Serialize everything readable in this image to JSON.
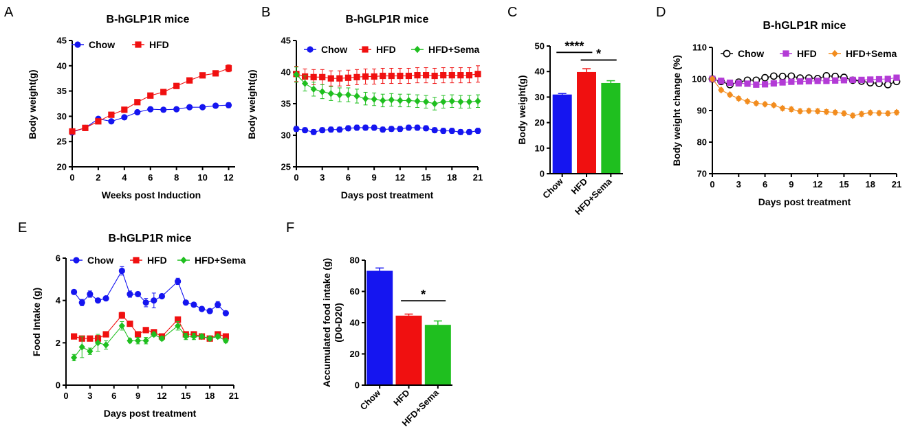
{
  "colors": {
    "chow": "#1515f0",
    "hfd": "#f01010",
    "hfd_sema": "#1fbf1f",
    "chow_open": "#000000",
    "hfd_purple": "#b33bd6",
    "hfd_sema_orange": "#f28c1e"
  },
  "chart_data": [
    {
      "id": "A",
      "type": "line",
      "panel_label": "A",
      "title": "B-hGLP1R mice",
      "xlabel": "Weeks post Induction",
      "ylabel": "Body weight(g)",
      "xlim": [
        0,
        12.5
      ],
      "ylim": [
        20,
        45
      ],
      "xticks": [
        0,
        2,
        4,
        6,
        8,
        10,
        12
      ],
      "yticks": [
        20,
        25,
        30,
        35,
        40,
        45
      ],
      "legend": "top-left",
      "series": [
        {
          "name": "Chow",
          "marker": "circle",
          "color": "#1515f0",
          "x": [
            0,
            1,
            2,
            3,
            4,
            5,
            6,
            7,
            8,
            9,
            10,
            11,
            12
          ],
          "y": [
            26.9,
            27.7,
            29.5,
            29.0,
            29.8,
            30.8,
            31.4,
            31.3,
            31.4,
            31.8,
            31.8,
            32.1,
            32.2
          ],
          "err": [
            0.6,
            0.4,
            0.4,
            0.3,
            0.4,
            0.3,
            0.4,
            0.3,
            0.3,
            0.3,
            0.3,
            0.3,
            0.5
          ]
        },
        {
          "name": "HFD",
          "marker": "square",
          "color": "#f01010",
          "x": [
            0,
            1,
            2,
            3,
            4,
            5,
            6,
            7,
            8,
            9,
            10,
            11,
            12
          ],
          "y": [
            27.0,
            27.7,
            29.0,
            30.3,
            31.3,
            32.8,
            34.1,
            34.8,
            36.0,
            37.1,
            38.1,
            38.5,
            39.5
          ],
          "err": [
            0.5,
            0.4,
            0.3,
            0.3,
            0.3,
            0.3,
            0.3,
            0.4,
            0.4,
            0.4,
            0.5,
            0.5,
            0.7
          ]
        }
      ]
    },
    {
      "id": "B",
      "type": "line",
      "panel_label": "B",
      "title": "B-hGLP1R mice",
      "xlabel": "Days post treatment",
      "ylabel": "Body weight(g)",
      "xlim": [
        0,
        21
      ],
      "ylim": [
        25,
        45
      ],
      "xticks": [
        0,
        3,
        6,
        9,
        12,
        15,
        18,
        21
      ],
      "yticks": [
        25,
        30,
        35,
        40,
        45
      ],
      "legend": "top",
      "series": [
        {
          "name": "Chow",
          "marker": "circle",
          "color": "#1515f0",
          "x": [
            0,
            1,
            2,
            3,
            4,
            5,
            6,
            7,
            8,
            9,
            10,
            11,
            12,
            13,
            14,
            15,
            16,
            17,
            18,
            19,
            20,
            21
          ],
          "y": [
            31.0,
            30.8,
            30.5,
            30.8,
            30.9,
            30.9,
            31.1,
            31.2,
            31.2,
            31.2,
            30.9,
            31.0,
            31.0,
            31.2,
            31.2,
            31.1,
            30.8,
            30.7,
            30.7,
            30.5,
            30.5,
            30.7
          ],
          "err": [
            0.4,
            0.4,
            0.4,
            0.4,
            0.4,
            0.4,
            0.4,
            0.4,
            0.4,
            0.4,
            0.4,
            0.4,
            0.4,
            0.4,
            0.4,
            0.4,
            0.4,
            0.4,
            0.4,
            0.4,
            0.4,
            0.4
          ]
        },
        {
          "name": "HFD",
          "marker": "square",
          "color": "#f01010",
          "x": [
            0,
            1,
            2,
            3,
            4,
            5,
            6,
            7,
            8,
            9,
            10,
            11,
            12,
            13,
            14,
            15,
            16,
            17,
            18,
            19,
            20,
            21
          ],
          "y": [
            39.7,
            39.3,
            39.2,
            39.2,
            39.0,
            39.0,
            39.1,
            39.2,
            39.3,
            39.3,
            39.4,
            39.4,
            39.4,
            39.4,
            39.5,
            39.5,
            39.4,
            39.5,
            39.5,
            39.5,
            39.5,
            39.7
          ],
          "err": [
            1.2,
            1.2,
            1.2,
            1.2,
            1.2,
            1.2,
            1.2,
            1.2,
            1.2,
            1.2,
            1.2,
            1.2,
            1.2,
            1.2,
            1.2,
            1.2,
            1.2,
            1.2,
            1.2,
            1.2,
            1.2,
            1.3
          ]
        },
        {
          "name": "HFD+Sema",
          "marker": "diamond",
          "color": "#1fbf1f",
          "x": [
            0,
            1,
            2,
            3,
            4,
            5,
            6,
            7,
            8,
            9,
            10,
            11,
            12,
            13,
            14,
            15,
            16,
            17,
            18,
            19,
            20,
            21
          ],
          "y": [
            39.6,
            38.2,
            37.3,
            36.9,
            36.6,
            36.4,
            36.4,
            36.2,
            35.8,
            35.7,
            35.5,
            35.6,
            35.5,
            35.5,
            35.4,
            35.3,
            35.0,
            35.3,
            35.4,
            35.3,
            35.3,
            35.4
          ],
          "err": [
            1.2,
            1.2,
            1.1,
            1.1,
            1.1,
            1.1,
            1.1,
            1.1,
            1.0,
            1.0,
            1.0,
            1.0,
            1.0,
            1.0,
            1.0,
            1.0,
            1.0,
            1.0,
            1.0,
            1.0,
            1.0,
            1.0
          ]
        }
      ]
    },
    {
      "id": "C",
      "type": "bar",
      "panel_label": "C",
      "ylabel": "Body weight(g)",
      "ylim": [
        0,
        50
      ],
      "yticks": [
        0,
        10,
        20,
        30,
        40,
        50
      ],
      "categories": [
        "Chow",
        "HFD",
        "HFD+Sema"
      ],
      "values": [
        31.0,
        39.8,
        35.5
      ],
      "err": [
        0.4,
        1.3,
        0.9
      ],
      "bar_colors": [
        "#1515f0",
        "#f01010",
        "#1fbf1f"
      ],
      "annotations": [
        {
          "text": "****",
          "from": 0,
          "to": 1,
          "y": 47.5
        },
        {
          "text": "*",
          "from": 1,
          "to": 2,
          "y": 44.5
        }
      ]
    },
    {
      "id": "D",
      "type": "line",
      "panel_label": "D",
      "title": "B-hGLP1R mice",
      "xlabel": "Days post treatment",
      "ylabel": "Body weight change (%)",
      "xlim": [
        0,
        21
      ],
      "ylim": [
        70,
        110
      ],
      "xticks": [
        0,
        3,
        6,
        9,
        12,
        15,
        18,
        21
      ],
      "yticks": [
        70,
        80,
        90,
        100,
        110
      ],
      "legend": "top",
      "series": [
        {
          "name": "Chow",
          "marker": "open-circle",
          "color": "#000000",
          "x": [
            0,
            1,
            2,
            3,
            4,
            5,
            6,
            7,
            8,
            9,
            10,
            11,
            12,
            13,
            14,
            15,
            16,
            17,
            18,
            19,
            20,
            21
          ],
          "y": [
            100.0,
            99.2,
            98.2,
            99.0,
            99.6,
            99.6,
            100.4,
            100.9,
            100.8,
            100.9,
            100.3,
            100.3,
            100.1,
            101.0,
            100.8,
            100.5,
            99.6,
            99.3,
            98.8,
            98.6,
            98.2,
            99.2
          ],
          "err": [
            0.5,
            0.5,
            0.5,
            0.5,
            0.5,
            0.5,
            0.5,
            0.5,
            0.5,
            0.5,
            0.5,
            0.5,
            0.5,
            0.5,
            0.5,
            0.5,
            0.5,
            0.5,
            0.5,
            0.5,
            0.5,
            0.5
          ]
        },
        {
          "name": "HFD",
          "marker": "square",
          "color": "#b33bd6",
          "x": [
            0,
            1,
            2,
            3,
            4,
            5,
            6,
            7,
            8,
            9,
            10,
            11,
            12,
            13,
            14,
            15,
            16,
            17,
            18,
            19,
            20,
            21
          ],
          "y": [
            100.0,
            99.4,
            98.8,
            98.6,
            98.5,
            98.2,
            98.3,
            98.6,
            98.9,
            99.1,
            99.2,
            99.3,
            99.4,
            99.4,
            99.5,
            99.6,
            99.7,
            99.7,
            99.8,
            99.9,
            100.0,
            100.4
          ],
          "err": [
            0.4,
            0.4,
            0.4,
            0.4,
            0.4,
            0.4,
            0.4,
            0.4,
            0.4,
            0.4,
            0.4,
            0.4,
            0.4,
            0.4,
            0.4,
            0.4,
            0.4,
            0.4,
            0.4,
            0.4,
            0.4,
            0.6
          ]
        },
        {
          "name": "HFD+Sema",
          "marker": "diamond",
          "color": "#f28c1e",
          "x": [
            0,
            1,
            2,
            3,
            4,
            5,
            6,
            7,
            8,
            9,
            10,
            11,
            12,
            13,
            14,
            15,
            16,
            17,
            18,
            19,
            20,
            21
          ],
          "y": [
            100.0,
            96.5,
            95.0,
            93.8,
            92.9,
            92.3,
            92.0,
            91.7,
            90.7,
            90.4,
            89.8,
            89.9,
            89.8,
            89.6,
            89.4,
            89.1,
            88.4,
            88.9,
            89.3,
            89.2,
            89.1,
            89.4
          ],
          "err": [
            0.5,
            0.6,
            0.6,
            0.6,
            0.6,
            0.6,
            0.6,
            0.6,
            0.7,
            0.7,
            0.7,
            0.7,
            0.7,
            0.7,
            0.7,
            0.7,
            0.7,
            0.7,
            0.7,
            0.7,
            0.7,
            0.7
          ]
        }
      ]
    },
    {
      "id": "E",
      "type": "line",
      "panel_label": "E",
      "title": "B-hGLP1R mice",
      "xlabel": "Days post treatment",
      "ylabel": "Food Intake (g)",
      "xlim": [
        0,
        21
      ],
      "ylim": [
        0,
        6
      ],
      "xticks": [
        0,
        3,
        6,
        9,
        12,
        15,
        18,
        21
      ],
      "yticks": [
        0,
        2,
        4,
        6
      ],
      "legend": "top",
      "series": [
        {
          "name": "Chow",
          "marker": "circle",
          "color": "#1515f0",
          "x": [
            1,
            2,
            3,
            4,
            5,
            7,
            8,
            9,
            10,
            11,
            12,
            14,
            15,
            16,
            17,
            18,
            19,
            20
          ],
          "y": [
            4.4,
            3.9,
            4.3,
            4.0,
            4.1,
            5.4,
            4.3,
            4.3,
            3.9,
            4.0,
            4.2,
            4.9,
            3.9,
            3.8,
            3.6,
            3.5,
            3.8,
            3.4
          ],
          "err": [
            0.1,
            0.15,
            0.15,
            0.1,
            0.1,
            0.2,
            0.15,
            0.1,
            0.2,
            0.35,
            0.1,
            0.15,
            0.1,
            0.1,
            0.1,
            0.1,
            0.15,
            0.1
          ]
        },
        {
          "name": "HFD",
          "marker": "square",
          "color": "#f01010",
          "x": [
            1,
            2,
            3,
            4,
            5,
            7,
            8,
            9,
            10,
            11,
            12,
            14,
            15,
            16,
            17,
            18,
            19,
            20
          ],
          "y": [
            2.3,
            2.2,
            2.2,
            2.2,
            2.4,
            3.3,
            2.9,
            2.4,
            2.6,
            2.5,
            2.3,
            3.1,
            2.4,
            2.4,
            2.3,
            2.2,
            2.4,
            2.3
          ],
          "err": [
            0.1,
            0.1,
            0.1,
            0.15,
            0.1,
            0.15,
            0.1,
            0.1,
            0.1,
            0.1,
            0.1,
            0.1,
            0.1,
            0.1,
            0.1,
            0.1,
            0.1,
            0.1
          ]
        },
        {
          "name": "HFD+Sema",
          "marker": "diamond",
          "color": "#1fbf1f",
          "x": [
            1,
            2,
            3,
            4,
            5,
            7,
            8,
            9,
            10,
            11,
            12,
            14,
            15,
            16,
            17,
            18,
            19,
            20
          ],
          "y": [
            1.3,
            1.8,
            1.6,
            2.0,
            1.9,
            2.8,
            2.1,
            2.1,
            2.1,
            2.4,
            2.2,
            2.8,
            2.3,
            2.3,
            2.3,
            2.2,
            2.3,
            2.1
          ],
          "err": [
            0.15,
            0.5,
            0.15,
            0.4,
            0.2,
            0.2,
            0.1,
            0.15,
            0.15,
            0.1,
            0.1,
            0.2,
            0.15,
            0.15,
            0.1,
            0.1,
            0.1,
            0.1
          ]
        }
      ]
    },
    {
      "id": "F",
      "type": "bar",
      "panel_label": "F",
      "ylabel": "Accumulated food intake (g)",
      "ylabel2": "(D0-D20)",
      "ylim": [
        0,
        80
      ],
      "yticks": [
        0,
        20,
        40,
        60,
        80
      ],
      "categories": [
        "Chow",
        "HFD",
        "HFD+Sema"
      ],
      "values": [
        73.2,
        44.5,
        38.6
      ],
      "err": [
        1.8,
        1.0,
        2.5
      ],
      "bar_colors": [
        "#1515f0",
        "#f01010",
        "#1fbf1f"
      ],
      "annotations": [
        {
          "text": "*",
          "from": 1,
          "to": 2,
          "y": 54
        }
      ]
    }
  ]
}
